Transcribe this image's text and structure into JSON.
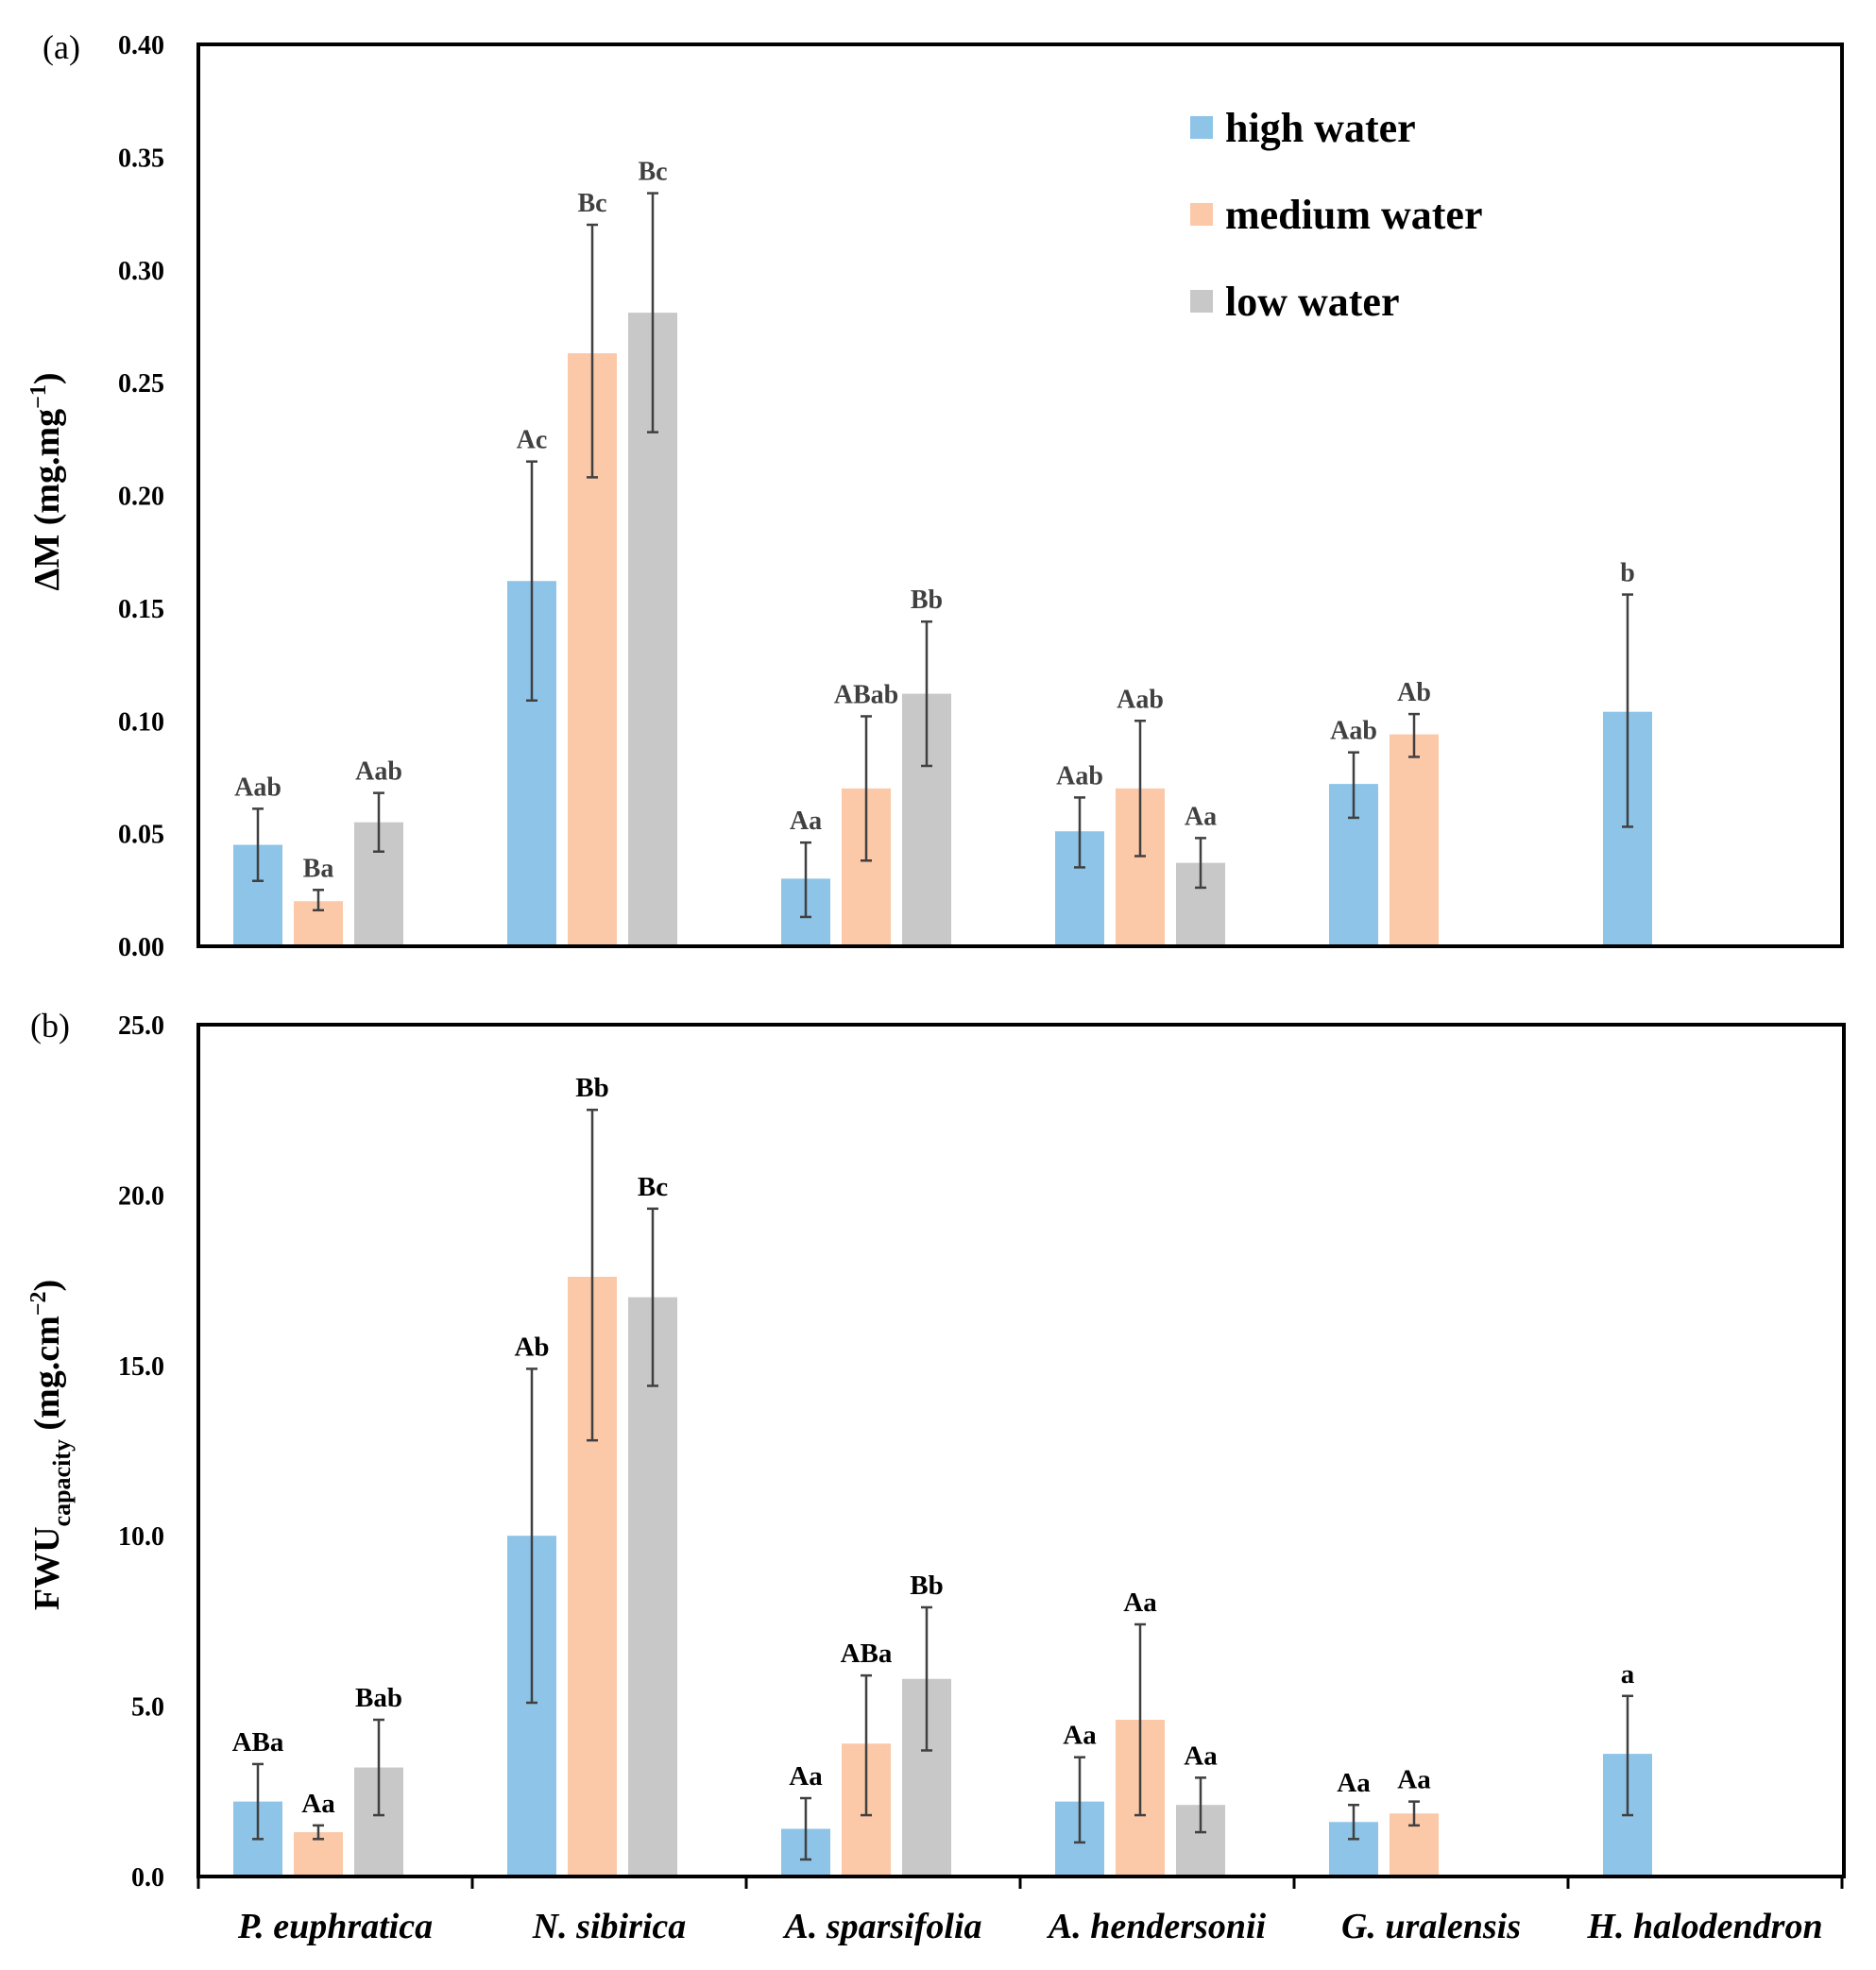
{
  "chart_data": [
    {
      "panel": "(a)",
      "type": "bar",
      "ylabel_main": "ΔM (mg.mg",
      "ylabel_sup": "−1",
      "ylabel_close": ")",
      "ylim": [
        0,
        0.4
      ],
      "yticks": [
        "0.00",
        "0.05",
        "0.10",
        "0.15",
        "0.20",
        "0.25",
        "0.30",
        "0.35",
        "0.40"
      ],
      "categories": [
        "P. euphratica",
        "N. sibirica",
        "A. sparsifolia",
        "A. hendersonii",
        "G. uralensis",
        "H. halodendron"
      ],
      "legend": [
        "high water",
        "medium water",
        "low water"
      ],
      "colors": [
        "#8dc4e8",
        "#fbc8a8",
        "#c8c8c8"
      ],
      "series": [
        {
          "name": "high water",
          "values": [
            0.045,
            0.162,
            0.03,
            0.051,
            0.072,
            0.104
          ],
          "err_low": [
            0.029,
            0.109,
            0.013,
            0.035,
            0.057,
            0.053
          ],
          "err_high": [
            0.061,
            0.215,
            0.046,
            0.066,
            0.086,
            0.156
          ],
          "labels": [
            "Aab",
            "Ac",
            "Aa",
            "Aab",
            "Aab",
            "b"
          ]
        },
        {
          "name": "medium water",
          "values": [
            0.02,
            0.263,
            0.07,
            0.07,
            0.094,
            null
          ],
          "err_low": [
            0.016,
            0.208,
            0.038,
            0.04,
            0.084,
            null
          ],
          "err_high": [
            0.025,
            0.32,
            0.102,
            0.1,
            0.103,
            null
          ],
          "labels": [
            "Ba",
            "Bc",
            "ABab",
            "Aab",
            "Ab",
            ""
          ]
        },
        {
          "name": "low water",
          "values": [
            0.055,
            0.281,
            0.112,
            0.037,
            null,
            null
          ],
          "err_low": [
            0.042,
            0.228,
            0.08,
            0.026,
            null,
            null
          ],
          "err_high": [
            0.068,
            0.334,
            0.144,
            0.048,
            null,
            null
          ],
          "labels": [
            "Aab",
            "Bc",
            "Bb",
            "Aa",
            "",
            ""
          ]
        }
      ]
    },
    {
      "panel": "(b)",
      "type": "bar",
      "ylabel_main": "FWU",
      "ylabel_sub": "capacity",
      "ylabel_unit": " (mg.cm",
      "ylabel_sup": "−2",
      "ylabel_close": ")",
      "ylim": [
        0,
        25.0
      ],
      "yticks": [
        "0.0",
        "5.0",
        "10.0",
        "15.0",
        "20.0",
        "25.0"
      ],
      "categories": [
        "P. euphratica",
        "N. sibirica",
        "A. sparsifolia",
        "A. hendersonii",
        "G. uralensis",
        "H. halodendron"
      ],
      "colors": [
        "#8dc4e8",
        "#fbc8a8",
        "#c8c8c8"
      ],
      "series": [
        {
          "name": "high water",
          "values": [
            2.2,
            10.0,
            1.4,
            2.2,
            1.6,
            3.6
          ],
          "err_low": [
            1.1,
            5.1,
            0.5,
            1.0,
            1.1,
            1.8
          ],
          "err_high": [
            3.3,
            14.9,
            2.3,
            3.5,
            2.1,
            5.3
          ],
          "labels": [
            "ABa",
            "Ab",
            "Aa",
            "Aa",
            "Aa",
            "a"
          ]
        },
        {
          "name": "medium water",
          "values": [
            1.3,
            17.6,
            3.9,
            4.6,
            1.85,
            null
          ],
          "err_low": [
            1.1,
            12.8,
            1.8,
            1.8,
            1.5,
            null
          ],
          "err_high": [
            1.5,
            22.5,
            5.9,
            7.4,
            2.2,
            null
          ],
          "labels": [
            "Aa",
            "Bb",
            "ABa",
            "Aa",
            "Aa",
            ""
          ]
        },
        {
          "name": "low water",
          "values": [
            3.2,
            17.0,
            5.8,
            2.1,
            null,
            null
          ],
          "err_low": [
            1.8,
            14.4,
            3.7,
            1.3,
            null,
            null
          ],
          "err_high": [
            4.6,
            19.6,
            7.9,
            2.9,
            null,
            null
          ],
          "labels": [
            "Bab",
            "Bc",
            "Bb",
            "Aa",
            "",
            ""
          ]
        }
      ]
    }
  ]
}
